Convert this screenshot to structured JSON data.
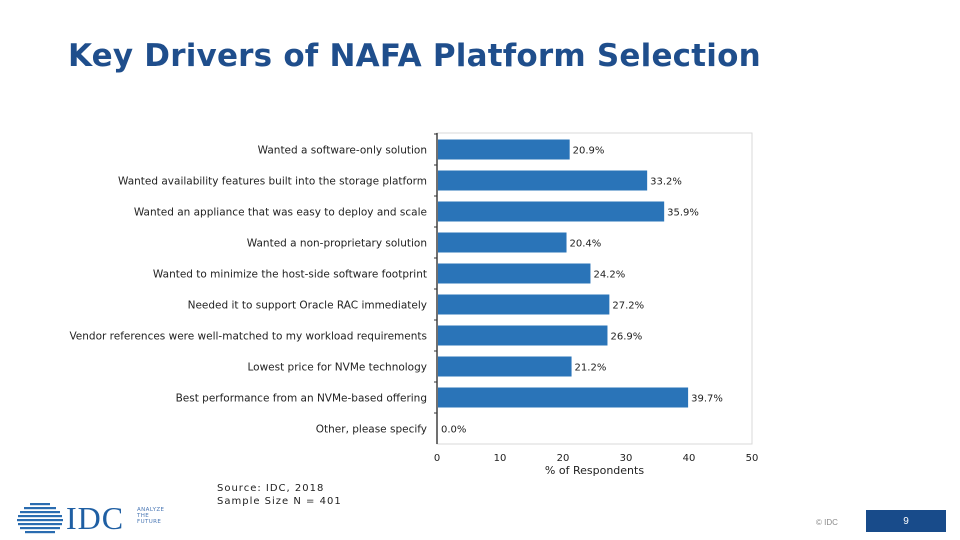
{
  "slide": {
    "title": "Key Drivers of NAFA Platform Selection",
    "source_line1": "Source:  IDC, 2018",
    "source_line2": "Sample Size N = 401",
    "logo_text": "IDC",
    "logo_tagline": [
      "ANALYZE",
      "THE",
      "FUTURE"
    ],
    "copyright": "© IDC",
    "page_number": "9"
  },
  "colors": {
    "bar": "#2a74b8",
    "title": "#1f4e8c",
    "page_box": "#184b8a"
  },
  "chart_data": {
    "type": "bar",
    "orientation": "horizontal",
    "categories": [
      "Wanted a software-only solution",
      "Wanted availability features built into the storage platform",
      "Wanted an appliance that was easy to deploy and scale",
      "Wanted a non-proprietary solution",
      "Wanted to minimize the host-side software footprint",
      "Needed it to support Oracle RAC immediately",
      "Vendor references were well-matched to my workload requirements",
      "Lowest price for NVMe technology",
      "Best performance from an NVMe-based offering",
      "Other, please specify"
    ],
    "values": [
      20.9,
      33.2,
      35.9,
      20.4,
      24.2,
      27.2,
      26.9,
      21.2,
      39.7,
      0.0
    ],
    "data_labels": [
      "20.9%",
      "33.2%",
      "35.9%",
      "20.4%",
      "24.2%",
      "27.2%",
      "26.9%",
      "21.2%",
      "39.7%",
      "0.0%"
    ],
    "xlabel": "% of Respondents",
    "ylabel": "",
    "xlim": [
      0,
      50
    ],
    "xticks": [
      0,
      10,
      20,
      30,
      40,
      50
    ],
    "grid": false,
    "legend": "none"
  }
}
